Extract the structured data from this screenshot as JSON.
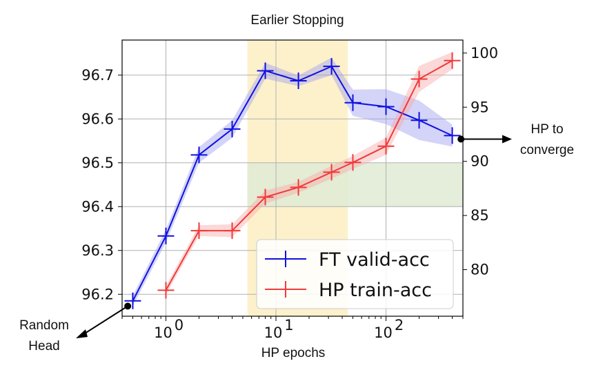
{
  "chart_data": {
    "type": "line",
    "title": "Earlier Stopping",
    "xlabel": "HP epochs",
    "x_scale": "log",
    "xlim": [
      0.4,
      500
    ],
    "x_ticks": [
      1,
      10,
      100
    ],
    "x_tick_labels": [
      "10",
      "10",
      "10"
    ],
    "x_tick_exponents": [
      "0",
      "1",
      "2"
    ],
    "left_ylim": [
      96.15,
      96.78
    ],
    "left_ticks": [
      96.2,
      96.3,
      96.4,
      96.5,
      96.6,
      96.7
    ],
    "left_tick_labels": [
      "96.2",
      "96.3",
      "96.4",
      "96.5",
      "96.6",
      "96.7"
    ],
    "right_ylim": [
      75.7,
      101.2
    ],
    "right_ticks": [
      80,
      85,
      90,
      95,
      100
    ],
    "right_tick_labels": [
      "80",
      "85",
      "90",
      "95",
      "100"
    ],
    "grid": true,
    "legend": "lower-right",
    "shaded_regions": [
      {
        "x": [
          5.5,
          45
        ],
        "color": "#fdf1cc"
      },
      {
        "x": [
          5.5,
          500
        ],
        "y_left": [
          96.4,
          96.5
        ],
        "color": "#dfebd3"
      }
    ],
    "series": [
      {
        "name": "FT valid-acc",
        "axis": "left",
        "color": "#1010e0",
        "band_color": "#9ea0f0",
        "x": [
          0.5,
          1,
          2,
          4,
          8,
          16,
          32,
          50,
          100,
          200,
          400
        ],
        "y": [
          96.185,
          96.333,
          96.518,
          96.577,
          96.71,
          96.687,
          96.72,
          96.637,
          96.628,
          96.597,
          96.562
        ],
        "band": [
          0.012,
          0.015,
          0.018,
          0.02,
          0.018,
          0.012,
          0.02,
          0.03,
          0.04,
          0.045,
          0.025
        ]
      },
      {
        "name": "HP train-acc",
        "axis": "right",
        "color": "#f03a3a",
        "band_color": "#f8a8a8",
        "x": [
          1,
          2,
          4,
          8,
          16,
          32,
          50,
          100,
          200,
          400
        ],
        "y": [
          78.1,
          83.6,
          83.6,
          86.7,
          87.6,
          89.0,
          89.9,
          91.4,
          97.6,
          99.3
        ],
        "band": [
          0.4,
          0.5,
          0.6,
          0.6,
          0.5,
          0.6,
          0.6,
          0.8,
          1.2,
          0.8
        ]
      }
    ],
    "annotations": [
      {
        "text": [
          "Random",
          "Head"
        ],
        "points_to": {
          "x": 0.45,
          "y_left": 96.173
        }
      },
      {
        "text": [
          "HP to",
          "converge"
        ],
        "points_to": {
          "x": 480,
          "y_left": 96.554
        }
      }
    ]
  }
}
